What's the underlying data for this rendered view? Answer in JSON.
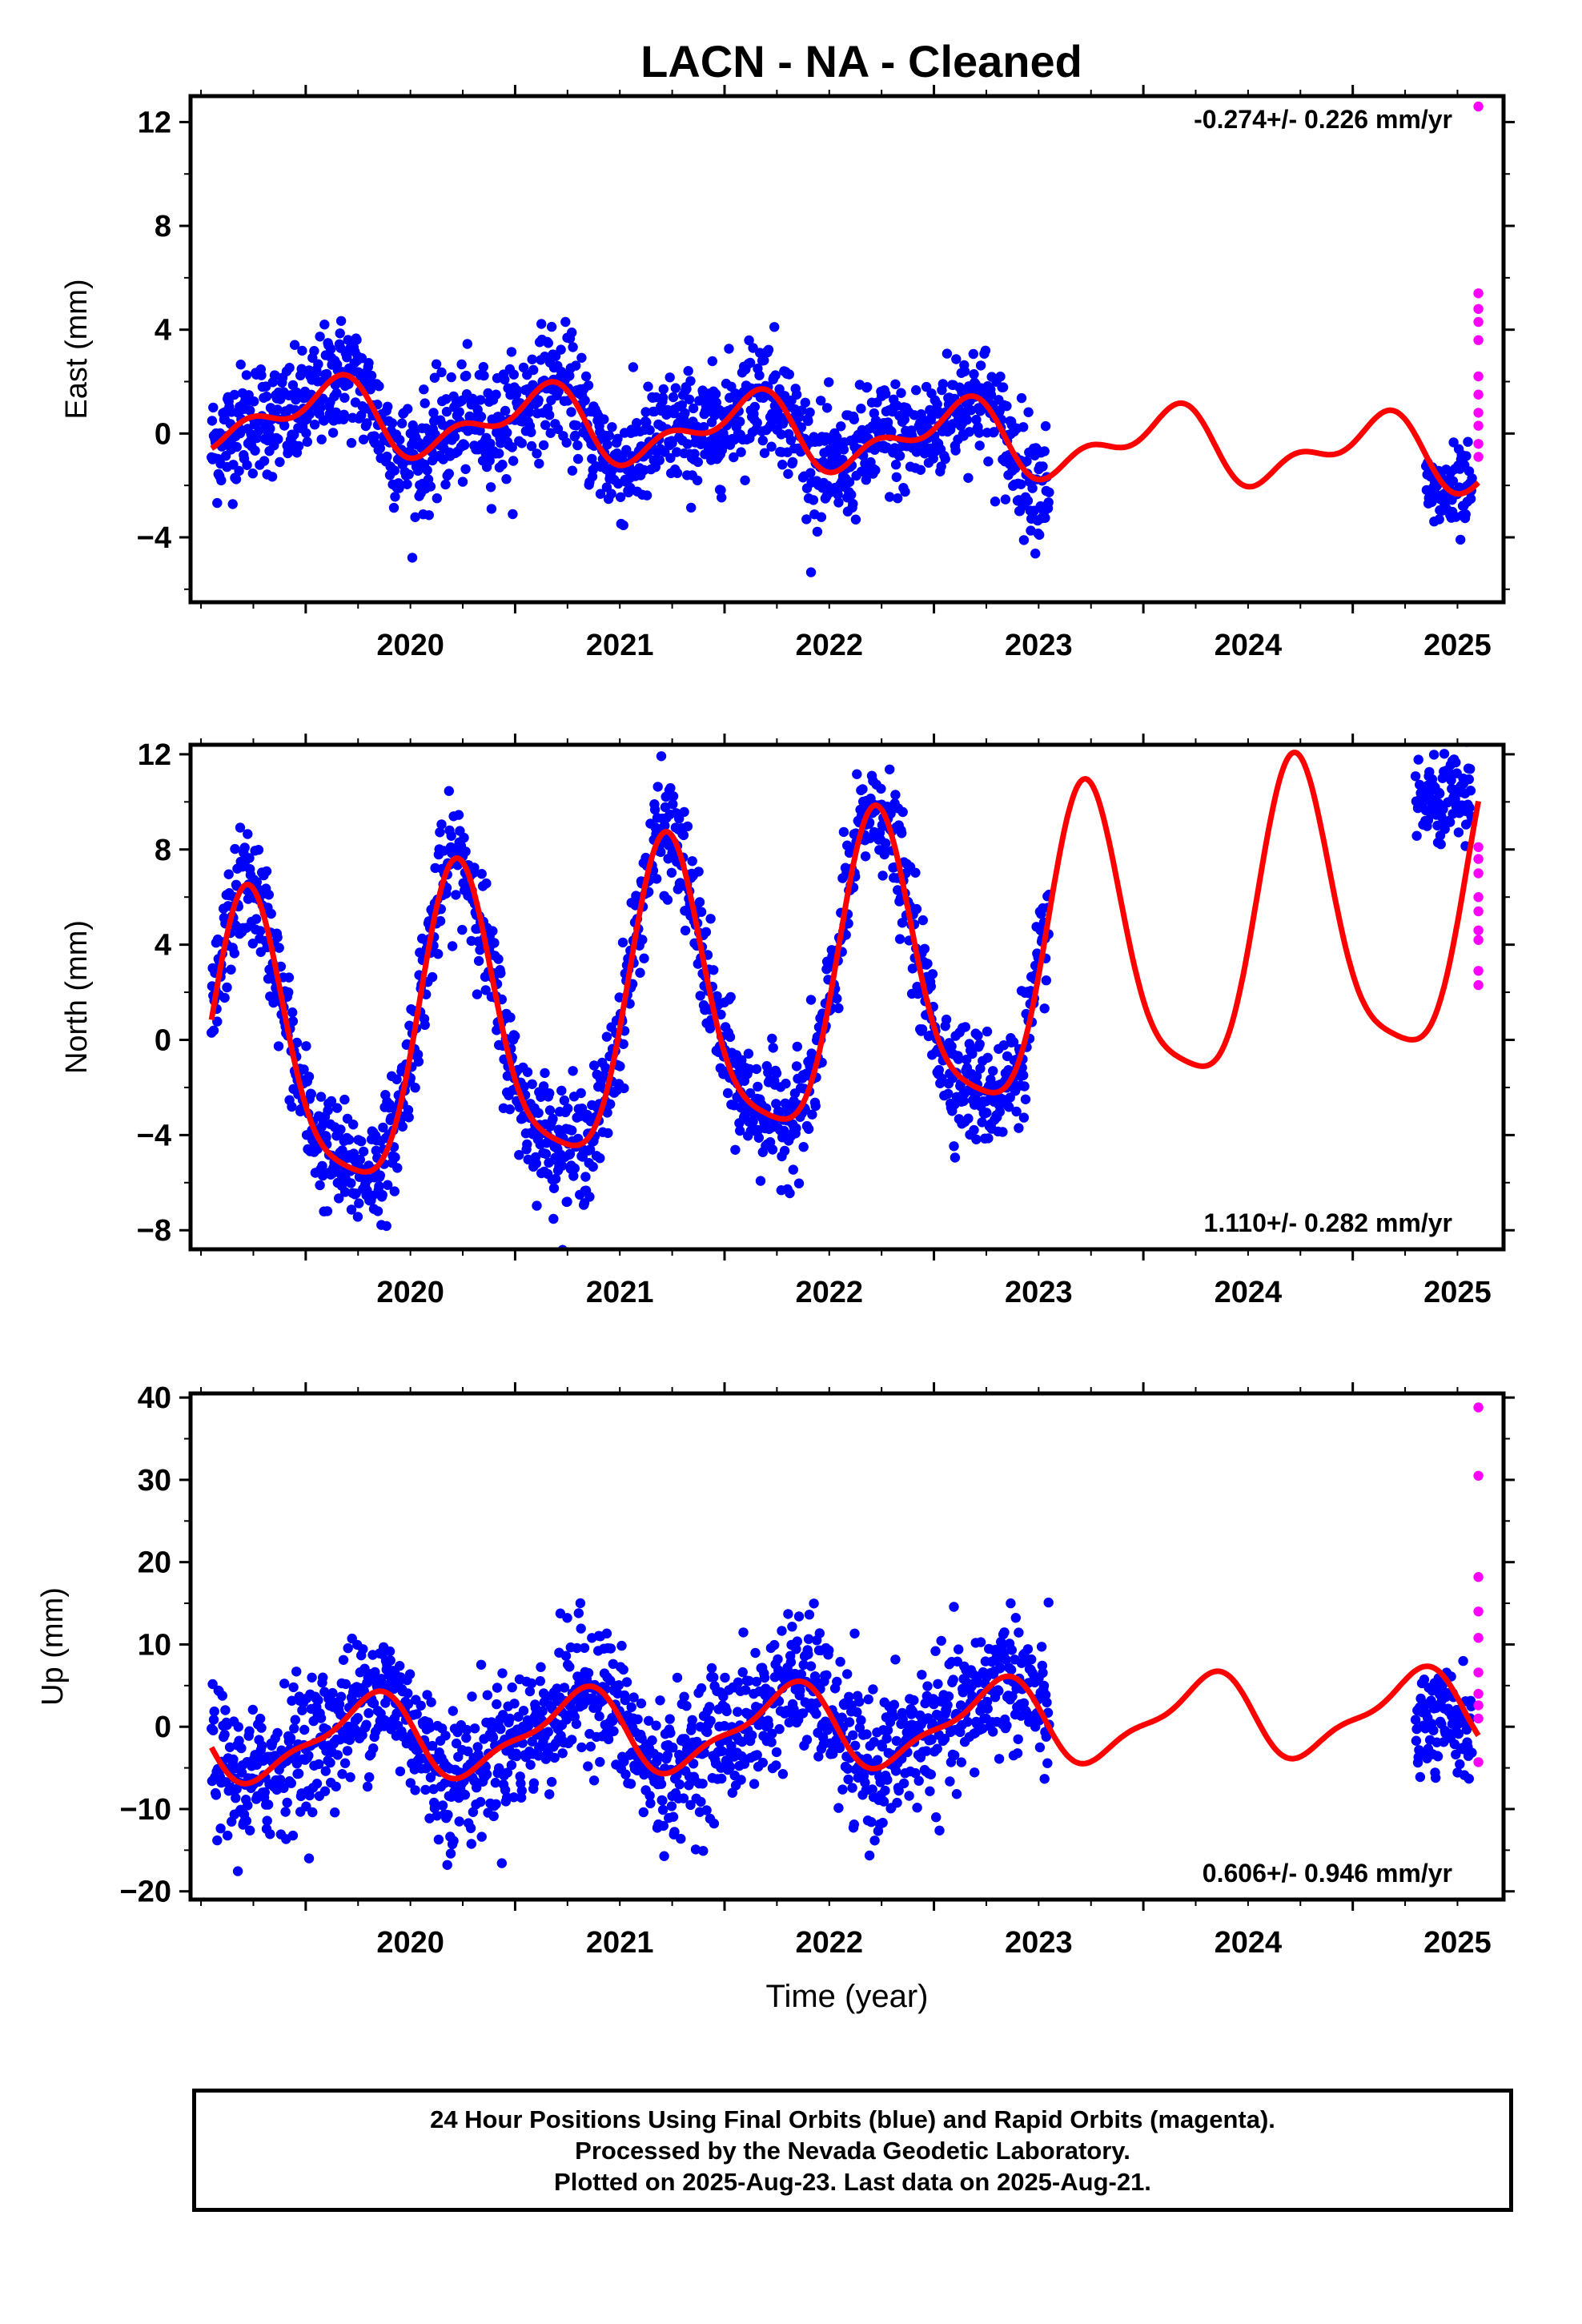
{
  "chart_data": {
    "type": "scatter",
    "title": "LACN  - NA - Cleaned",
    "x_label": "Time (year)",
    "x_range": [
      2019.45,
      2025.72
    ],
    "x_ticks": [
      2020,
      2021,
      2022,
      2023,
      2024,
      2025
    ],
    "legend": {
      "final_orbits_color": "#0000ff",
      "rapid_orbits_color": "#ff00ff",
      "model_color": "#ff0000"
    },
    "panels": [
      {
        "name": "east",
        "ylabel": "East (mm)",
        "ylim": [
          -6.5,
          13
        ],
        "yticks": [
          -4,
          0,
          4,
          8,
          12
        ],
        "rate_text": "-0.274+/- 0.226 mm/yr",
        "rate_position": "top-right",
        "model": {
          "offset": 0.0,
          "trend": -0.274,
          "ref_year": 2022.5,
          "annual_sin": 0.7,
          "annual_cos": 0.9,
          "semiannual_sin": 0.3,
          "semiannual_cos": -0.6
        },
        "final_orbits": {
          "x_start": 2019.55,
          "x_end": 2023.55,
          "scatter": 1.1
        },
        "rapid_orbits_gap_data": {
          "x_start": 2025.35,
          "x_end": 2025.57,
          "mean": -2.4
        },
        "rapid_orbits_magenta": [
          [
            2025.6,
            12.6
          ],
          [
            2025.6,
            5.4
          ],
          [
            2025.6,
            4.8
          ],
          [
            2025.6,
            4.3
          ],
          [
            2025.6,
            3.6
          ],
          [
            2025.6,
            2.2
          ],
          [
            2025.6,
            1.5
          ],
          [
            2025.6,
            0.8
          ],
          [
            2025.6,
            0.3
          ],
          [
            2025.6,
            -0.4
          ],
          [
            2025.6,
            -0.9
          ]
        ]
      },
      {
        "name": "north",
        "ylabel": "North (mm)",
        "ylim": [
          -8.8,
          12.4
        ],
        "yticks": [
          -8,
          -4,
          0,
          4,
          8,
          12
        ],
        "rate_text": "1.110+/- 0.282 mm/yr",
        "rate_position": "bottom-right",
        "model": {
          "offset": 2.0,
          "trend": 1.11,
          "ref_year": 2022.5,
          "annual_sin": -6.2,
          "annual_cos": -0.8,
          "semiannual_sin": 0.7,
          "semiannual_cos": -1.2
        },
        "final_orbits": {
          "x_start": 2019.55,
          "x_end": 2023.55,
          "scatter": 1.2
        },
        "rapid_orbits_gap_data": {
          "x_start": 2025.3,
          "x_end": 2025.57,
          "mean": 10.0
        },
        "rapid_orbits_magenta": [
          [
            2025.6,
            8.1
          ],
          [
            2025.6,
            7.6
          ],
          [
            2025.6,
            7.0
          ],
          [
            2025.6,
            6.0
          ],
          [
            2025.6,
            5.4
          ],
          [
            2025.6,
            4.6
          ],
          [
            2025.6,
            4.2
          ],
          [
            2025.6,
            2.9
          ],
          [
            2025.6,
            2.3
          ]
        ]
      },
      {
        "name": "up",
        "ylabel": "Up (mm)",
        "ylim": [
          -21,
          40.5
        ],
        "yticks": [
          -20,
          -10,
          0,
          10,
          20,
          30,
          40
        ],
        "rate_text": "0.606+/- 0.946 mm/yr",
        "rate_position": "bottom-right",
        "model": {
          "offset": 0.0,
          "trend": 0.606,
          "ref_year": 2022.5,
          "annual_sin": 4.5,
          "annual_cos": -1.2,
          "semiannual_sin": -1.5,
          "semiannual_cos": 0.5
        },
        "final_orbits": {
          "x_start": 2019.55,
          "x_end": 2023.55,
          "scatter": 4.2
        },
        "rapid_orbits_gap_data": {
          "x_start": 2025.3,
          "x_end": 2025.57,
          "mean": 0.0
        },
        "rapid_orbits_magenta": [
          [
            2025.6,
            38.8
          ],
          [
            2025.6,
            30.5
          ],
          [
            2025.6,
            18.2
          ],
          [
            2025.6,
            14.0
          ],
          [
            2025.6,
            10.8
          ],
          [
            2025.6,
            6.6
          ],
          [
            2025.6,
            4.0
          ],
          [
            2025.6,
            2.6
          ],
          [
            2025.6,
            1.0
          ],
          [
            2025.6,
            -4.3
          ]
        ]
      }
    ]
  },
  "footer": {
    "line1": "24 Hour Positions Using Final Orbits (blue) and Rapid Orbits (magenta).",
    "line2": "Processed by the Nevada Geodetic Laboratory.",
    "line3": "Plotted on 2025-Aug-23. Last data on 2025-Aug-21."
  }
}
